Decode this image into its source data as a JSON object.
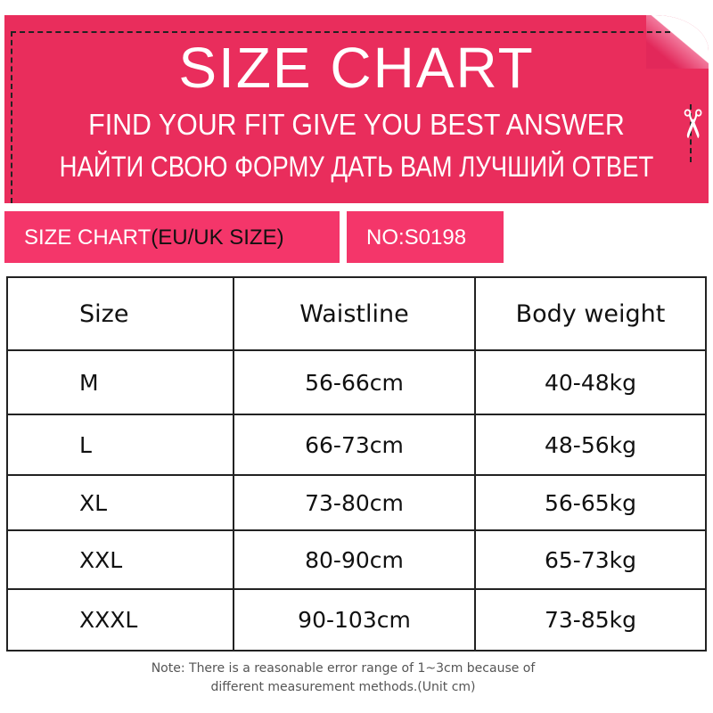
{
  "banner": {
    "title": "SIZE  CHART",
    "subtitle_en": "FIND YOUR FIT GIVE YOU BEST ANSWER",
    "subtitle_ru": "НАЙТИ СВОЮ ФОРМУ ДАТЬ ВАМ ЛУЧШИЙ ОТВЕТ",
    "icon": "scissors-icon"
  },
  "tabs": {
    "chart_label": "SIZE  CHART",
    "chart_region": "(EU/UK SIZE)",
    "number": "NO:S0198"
  },
  "table": {
    "headers": [
      "Size",
      "Waistline",
      "Body weight"
    ],
    "rows": [
      [
        "M",
        "56-66cm",
        "40-48kg"
      ],
      [
        "L",
        "66-73cm",
        "48-56kg"
      ],
      [
        "XL",
        "73-80cm",
        "56-65kg"
      ],
      [
        "XXL",
        "80-90cm",
        "65-73kg"
      ],
      [
        "XXXL",
        "90-103cm",
        "73-85kg"
      ]
    ]
  },
  "note": {
    "line1": "Note: There is a reasonable error range of 1~3cm because of",
    "line2": "different measurement methods.(Unit cm)"
  },
  "colors": {
    "banner": "#e92d5c",
    "tab": "#f4366a"
  }
}
